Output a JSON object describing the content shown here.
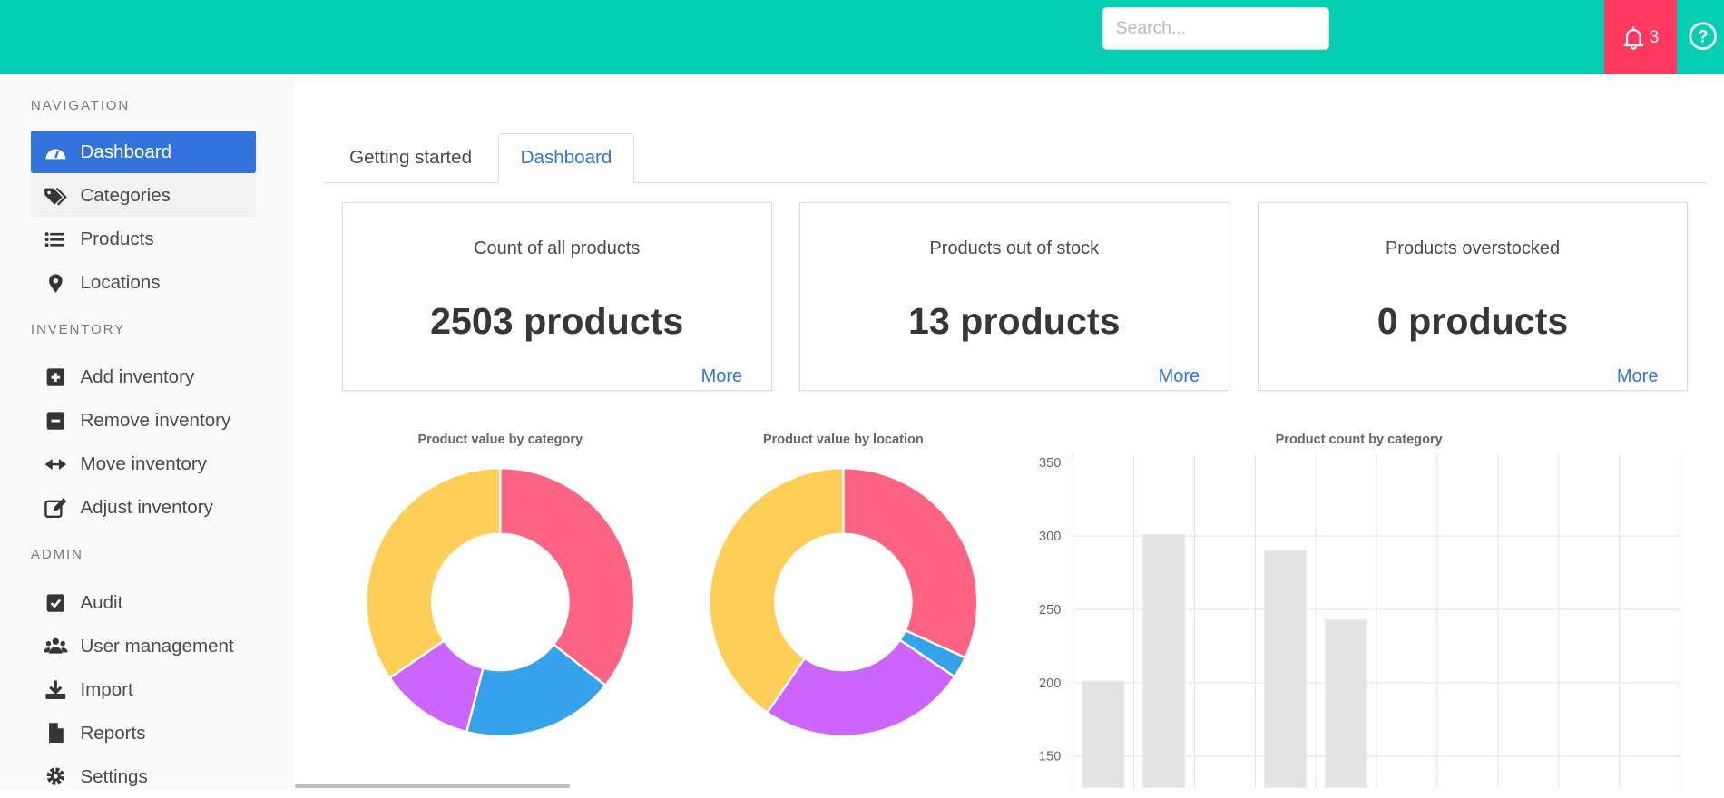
{
  "header": {
    "search_placeholder": "Search...",
    "notification_count": "3",
    "brand_color": "#05cfb3",
    "alert_color": "#ff3860"
  },
  "sidebar": {
    "sections": [
      {
        "label": "NAVIGATION",
        "items": [
          {
            "label": "Dashboard",
            "icon": "tachometer-icon",
            "active": true
          },
          {
            "label": "Categories",
            "icon": "tags-icon"
          },
          {
            "label": "Products",
            "icon": "list-icon"
          },
          {
            "label": "Locations",
            "icon": "map-marker-icon"
          }
        ]
      },
      {
        "label": "INVENTORY",
        "items": [
          {
            "label": "Add inventory",
            "icon": "plus-square-icon"
          },
          {
            "label": "Remove inventory",
            "icon": "minus-square-icon"
          },
          {
            "label": "Move inventory",
            "icon": "arrows-h-icon"
          },
          {
            "label": "Adjust inventory",
            "icon": "edit-icon"
          }
        ]
      },
      {
        "label": "ADMIN",
        "items": [
          {
            "label": "Audit",
            "icon": "check-square-icon"
          },
          {
            "label": "User management",
            "icon": "users-icon"
          },
          {
            "label": "Import",
            "icon": "download-icon"
          },
          {
            "label": "Reports",
            "icon": "file-icon"
          },
          {
            "label": "Settings",
            "icon": "cog-icon"
          }
        ]
      }
    ]
  },
  "tabs": [
    {
      "label": "Getting started"
    },
    {
      "label": "Dashboard",
      "active": true
    }
  ],
  "cards": [
    {
      "title": "Count of all products",
      "value": "2503 products",
      "more": "More"
    },
    {
      "title": "Products out of stock",
      "value": "13 products",
      "more": "More"
    },
    {
      "title": "Products overstocked",
      "value": "0 products",
      "more": "More"
    }
  ],
  "chart_data": [
    {
      "type": "pie",
      "title": "Product value by category",
      "donut": true,
      "values": [
        35.7,
        18.4,
        11.4,
        34.6
      ],
      "colors": [
        "#ff6384",
        "#36a2eb",
        "#cc65fe",
        "#ffce56"
      ]
    },
    {
      "type": "pie",
      "title": "Product value by location",
      "donut": true,
      "values": [
        31.8,
        2.6,
        25.2,
        40.4
      ],
      "colors": [
        "#ff6384",
        "#36a2eb",
        "#cc65fe",
        "#ffce56"
      ]
    },
    {
      "type": "bar",
      "title": "Product count by category",
      "values": [
        201,
        301,
        null,
        290,
        243,
        null,
        null,
        null,
        null,
        null
      ],
      "yticks": [
        350,
        300,
        250,
        200,
        150
      ],
      "ylim_visible": [
        150,
        350
      ],
      "bar_color": "#e3e3e3",
      "grid": true
    }
  ]
}
